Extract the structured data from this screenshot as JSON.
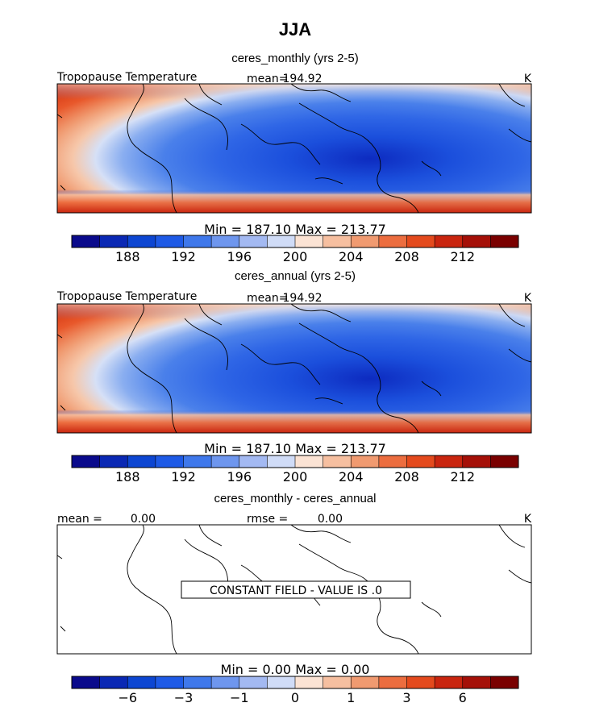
{
  "title": "JJA",
  "colorbar_colors": [
    "#0a0a8c",
    "#0a28b4",
    "#0d46d2",
    "#1e5ae6",
    "#3f78eb",
    "#6e96ee",
    "#a3b9f2",
    "#d0dcf7",
    "#fbe3d4",
    "#f6bfa0",
    "#f09a70",
    "#ec6d3f",
    "#e44a1d",
    "#c9250f",
    "#a51008",
    "#7a0000"
  ],
  "chart_data": [
    {
      "type": "heatmap",
      "title": "ceres_monthly (yrs 2-5)",
      "field_label": "Tropopause Temperature",
      "stat_label": "mean=",
      "stat_value": "194.92",
      "units": "K",
      "min_max_line": "Min = 187.10 Max = 213.77",
      "min": 187.1,
      "max": 213.77,
      "mean": 194.92,
      "colorbar_ticks": [
        "188",
        "192",
        "196",
        "200",
        "204",
        "208",
        "212"
      ],
      "colorbar_levels": [
        186,
        188,
        190,
        192,
        194,
        196,
        198,
        200,
        202,
        204,
        206,
        208,
        210,
        212,
        214
      ]
    },
    {
      "type": "heatmap",
      "title": "ceres_annual (yrs 2-5)",
      "field_label": "Tropopause Temperature",
      "stat_label": "mean=",
      "stat_value": "194.92",
      "units": "K",
      "min_max_line": "Min = 187.10 Max = 213.77",
      "min": 187.1,
      "max": 213.77,
      "mean": 194.92,
      "colorbar_ticks": [
        "188",
        "192",
        "196",
        "200",
        "204",
        "208",
        "212"
      ],
      "colorbar_levels": [
        186,
        188,
        190,
        192,
        194,
        196,
        198,
        200,
        202,
        204,
        206,
        208,
        210,
        212,
        214
      ]
    },
    {
      "type": "heatmap",
      "title": "ceres_monthly - ceres_annual",
      "mean_label": "mean =",
      "mean_value": "0.00",
      "rmse_label": "rmse =",
      "rmse_value": "0.00",
      "units": "K",
      "min_max_line": "Min = 0.00 Max = 0.00",
      "min": 0.0,
      "max": 0.0,
      "constant_message": "CONSTANT FIELD - VALUE IS .0",
      "colorbar_ticks": [
        "−6",
        "−3",
        "−1",
        "0",
        "1",
        "3",
        "6"
      ]
    }
  ]
}
